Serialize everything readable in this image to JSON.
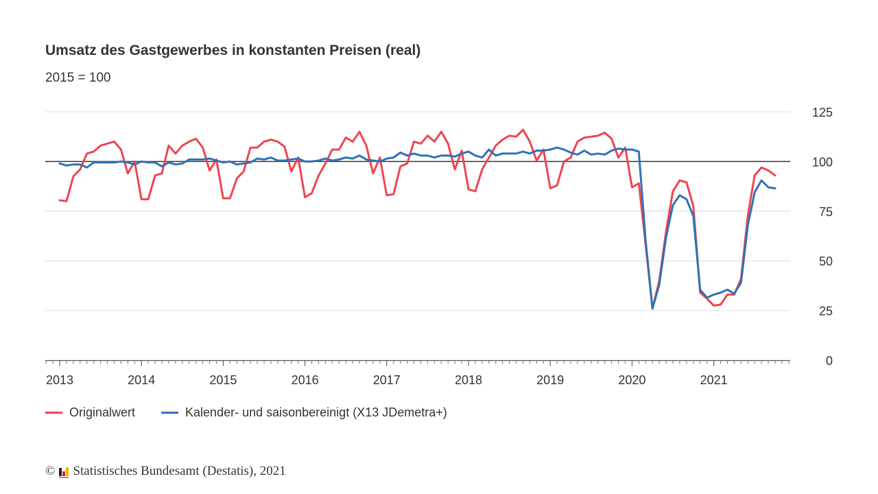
{
  "header": {
    "title": "Umsatz des Gastgewerbes in konstanten Preisen (real)",
    "subtitle": "2015 = 100"
  },
  "legend": {
    "items": [
      {
        "label": "Originalwert",
        "color": "#ef4450"
      },
      {
        "label": "Kalender- und saisonbereinigt (X13 JDemetra+)",
        "color": "#2f72b5"
      }
    ]
  },
  "footer": {
    "copyright_symbol": "©",
    "source": "Statistisches Bundesamt (Destatis), 2021"
  },
  "chart_data": {
    "type": "line",
    "title": "Umsatz des Gastgewerbes in konstanten Preisen (real)",
    "subtitle": "2015 = 100",
    "xlabel": "",
    "ylabel": "",
    "x_start": "2013-01",
    "x_end": "2021-10",
    "frequency": "monthly",
    "x_tick_labels": [
      "2013",
      "2014",
      "2015",
      "2016",
      "2017",
      "2018",
      "2019",
      "2020",
      "2021"
    ],
    "y_tick_labels": [
      "0",
      "25",
      "50",
      "75",
      "100",
      "125"
    ],
    "y_ticks": [
      0,
      25,
      50,
      75,
      100,
      125
    ],
    "ylim": [
      0,
      125
    ],
    "reference_line": 100,
    "grid": true,
    "y_axis_side": "right",
    "legend_position": "bottom-left",
    "series": [
      {
        "name": "Originalwert",
        "color": "#ef4450",
        "values": [
          80.5,
          80,
          92.5,
          96,
          104,
          105,
          108,
          109,
          110,
          106,
          94,
          100,
          81,
          81,
          93,
          94,
          108,
          104,
          108,
          110,
          111.5,
          107,
          95.5,
          101,
          81.5,
          81.5,
          91.5,
          95,
          107,
          107,
          110,
          111,
          110,
          107.5,
          95,
          102,
          82,
          84,
          93,
          99,
          106,
          106,
          112,
          110,
          115,
          108,
          94,
          102,
          83,
          83.5,
          97.5,
          99,
          110,
          109,
          113,
          110,
          115,
          109,
          96,
          105.5,
          86,
          85,
          96,
          102,
          108,
          111,
          113,
          112.5,
          116,
          110,
          100.5,
          106,
          86.5,
          88,
          100,
          102,
          110,
          112,
          112.5,
          113,
          114.5,
          111.5,
          102,
          107,
          87,
          89,
          58,
          26,
          40,
          65,
          85,
          90.5,
          89.5,
          77.5,
          34,
          31,
          27.5,
          28,
          33,
          33,
          41,
          73,
          93,
          97,
          95.5,
          93
        ]
      },
      {
        "name": "Kalender- und saisonbereinigt (X13 JDemetra+)",
        "color": "#2f72b5",
        "values": [
          99,
          98,
          98.5,
          98.5,
          97,
          99.5,
          99.5,
          99.5,
          99.5,
          100,
          99.5,
          98.5,
          100,
          99.5,
          99.5,
          97.5,
          99.5,
          98.5,
          99,
          101,
          101,
          101,
          101.5,
          100.5,
          99.5,
          100,
          98.5,
          99,
          99.5,
          101.5,
          101,
          102,
          100.5,
          100.5,
          101,
          101.5,
          100,
          100,
          100.5,
          101.5,
          100.5,
          101,
          102,
          101.5,
          103,
          101,
          100.5,
          100,
          101.5,
          102,
          104.5,
          103,
          104,
          103,
          103,
          102,
          103,
          103,
          102.5,
          104,
          105,
          103,
          102,
          106,
          103,
          104,
          104,
          104,
          105,
          104,
          105.5,
          105.5,
          106,
          107,
          106,
          104.5,
          103.5,
          105.5,
          103.5,
          104,
          103.5,
          105.5,
          106.5,
          106,
          106,
          105,
          60,
          26,
          38,
          62,
          78,
          83,
          81,
          72.5,
          35.5,
          31.5,
          33,
          34,
          35.5,
          33.5,
          39,
          68,
          84.5,
          90.5,
          87,
          86.5
        ]
      }
    ]
  }
}
